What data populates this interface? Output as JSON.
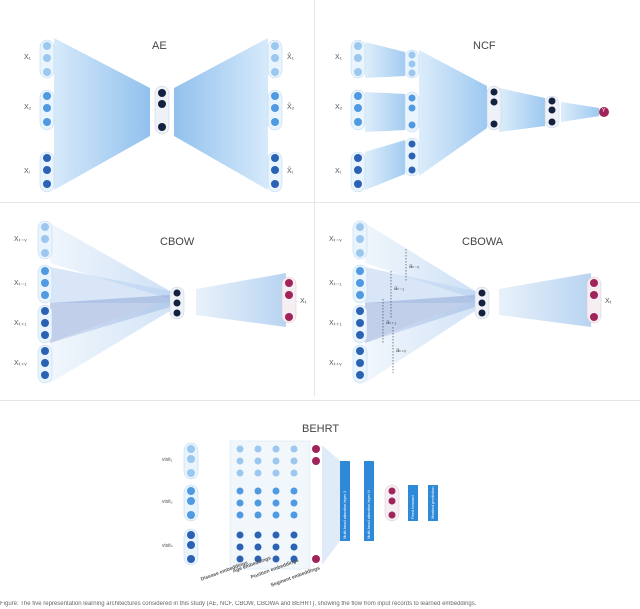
{
  "panels": {
    "ae": {
      "title": "AE",
      "inputs": [
        "X₁",
        "X₂",
        "Xᵢ"
      ],
      "outputs": [
        "X̂₁",
        "X̂₂",
        "X̂ᵢ"
      ]
    },
    "ncf": {
      "title": "NCF",
      "inputs": [
        "X₁",
        "X₂",
        "Xᵢ"
      ],
      "output": "Y"
    },
    "cbow": {
      "title": "CBOW",
      "inputs": [
        "Xₜ₋ᵥ",
        "Xₜ₋₁",
        "Xₜ₊₁",
        "Xₜ₊ᵥ"
      ],
      "output": "Xₜ"
    },
    "cbowa": {
      "title": "CBOWA",
      "inputs": [
        "Xₜ₋ᵥ",
        "Xₜ₋₁",
        "Xₜ₊₁",
        "Xₜ₊ᵥ"
      ],
      "output": "Xₜ",
      "attention": [
        "aₜ₋ᵥ",
        "aₜ₋₁",
        "aₜ₊₁",
        "aₜ₊ᵥ"
      ]
    },
    "behrt": {
      "title": "BEHRT",
      "visits": [
        "visit₁",
        "visit₂",
        "visitₙ"
      ],
      "embedding_labels": [
        "Disease embeddings",
        "Age embeddings",
        "Position embeddings",
        "Segment embeddings"
      ],
      "blocks": [
        "Multi-head attention layer 1",
        "Multi-head attention layer N",
        "Feed forward",
        "Masked prediction"
      ]
    }
  },
  "caption": "Figure: The five representation learning architectures considered in this study (AE, NCF, CBOW, CBOWA and BEHRT), showing the flow from input records to learned embeddings."
}
